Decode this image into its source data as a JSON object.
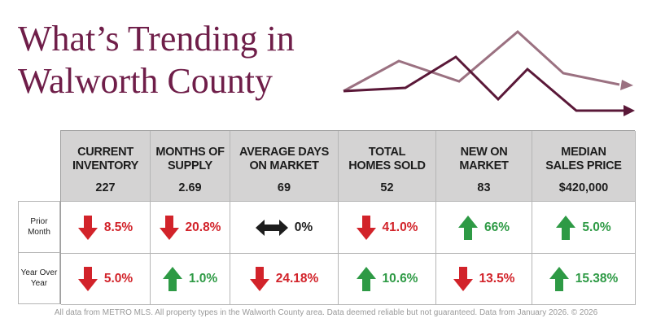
{
  "title": {
    "line1": "What’s Trending in",
    "line2": "Walworth County"
  },
  "colors": {
    "title": "#6f1e49",
    "header_bg": "#d4d3d3",
    "down_red": "#d2232a",
    "up_green": "#2e9a45",
    "neutral": "#1d1d1d",
    "trend_line_light": "#9b7181",
    "trend_line_dark": "#5a1838"
  },
  "columns": [
    {
      "label_1": "CURRENT",
      "label_2": "INVENTORY",
      "value": "227"
    },
    {
      "label_1": "MONTHS OF",
      "label_2": "SUPPLY",
      "value": "2.69"
    },
    {
      "label_1": "AVERAGE DAYS",
      "label_2": "ON MARKET",
      "value": "69"
    },
    {
      "label_1": "TOTAL",
      "label_2": "HOMES SOLD",
      "value": "52"
    },
    {
      "label_1": "NEW ON",
      "label_2": "MARKET",
      "value": "83"
    },
    {
      "label_1": "MEDIAN",
      "label_2": "SALES PRICE",
      "value": "$420,000"
    }
  ],
  "rows": [
    {
      "label_1": "Prior",
      "label_2": "Month",
      "cells": [
        {
          "icon": "arrow-down-icon",
          "value": "8.5%"
        },
        {
          "icon": "arrow-down-icon",
          "value": "20.8%"
        },
        {
          "icon": "arrow-left-right-icon",
          "value": "0%"
        },
        {
          "icon": "arrow-down-icon",
          "value": "41.0%"
        },
        {
          "icon": "arrow-up-icon",
          "value": "66%"
        },
        {
          "icon": "arrow-up-icon",
          "value": "5.0%"
        }
      ]
    },
    {
      "label_1": "Year Over",
      "label_2": "Year",
      "cells": [
        {
          "icon": "arrow-down-icon",
          "value": "5.0%"
        },
        {
          "icon": "arrow-up-icon",
          "value": "1.0%"
        },
        {
          "icon": "arrow-down-icon",
          "value": "24.18%"
        },
        {
          "icon": "arrow-up-icon",
          "value": "10.6%"
        },
        {
          "icon": "arrow-down-icon",
          "value": "13.5%"
        },
        {
          "icon": "arrow-up-icon",
          "value": "15.38%"
        }
      ]
    }
  ],
  "footer": "All data from METRO MLS. All property types in the Walworth County area. Data deemed reliable but not guaranteed. Data from January 2026. © 2026"
}
